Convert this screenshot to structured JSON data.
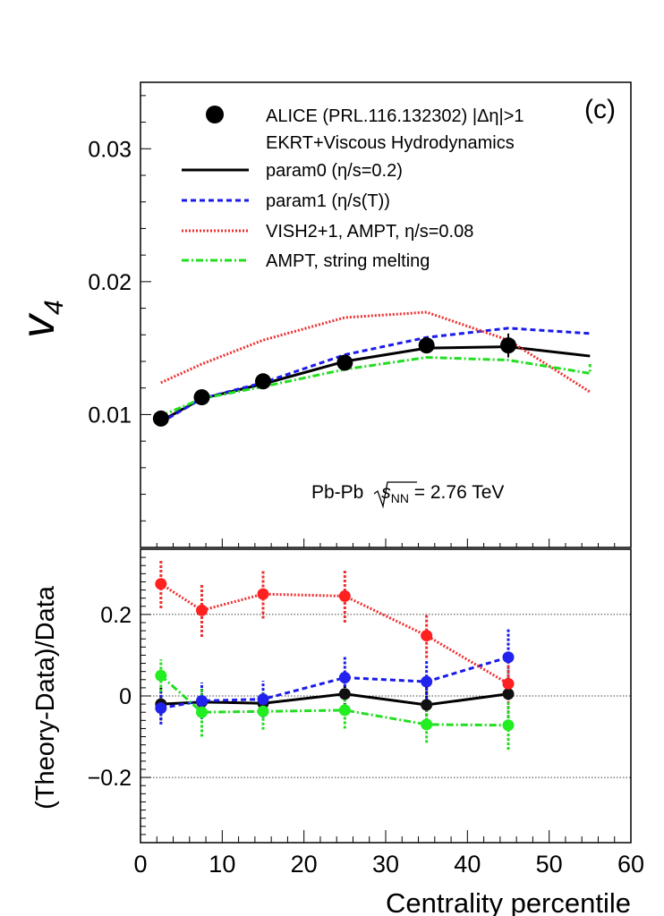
{
  "chart_data": [
    {
      "panel": "top",
      "type": "line",
      "panel_label": "(c)",
      "ylabel": "v",
      "ylabel_sub": "4",
      "xlim": [
        0,
        60
      ],
      "ylim": [
        0.0,
        0.035
      ],
      "yticks": [
        0.01,
        0.02,
        0.03
      ],
      "ytick_labels": [
        "0.01",
        "0.02",
        "0.03"
      ],
      "annotation_prefix": "Pb-Pb ",
      "annotation_sqrt_s": "s",
      "annotation_sub": "NN",
      "annotation_suffix": " = 2.76 TeV",
      "legend": {
        "position": "top",
        "data_label": "ALICE (PRL.116.132302) |Δη|>1",
        "group_header": "EKRT+Viscous Hydrodynamics",
        "param0": "param0 (η/s=0.2)",
        "param1": "param1 (η/s(T))",
        "vish": "VISH2+1, AMPT, η/s=0.08",
        "ampt": "AMPT, string melting"
      },
      "data": {
        "name": "ALICE",
        "color": "#000000",
        "x": [
          2.5,
          7.5,
          15,
          25,
          35,
          45
        ],
        "y": [
          0.0097,
          0.0113,
          0.0125,
          0.0139,
          0.0152,
          0.0152
        ],
        "yerr": [
          0.0004,
          0.0004,
          0.0004,
          0.0005,
          0.0006,
          0.0009
        ]
      },
      "series": [
        {
          "name": "param0",
          "color": "#000000",
          "style": "solid",
          "x": [
            2.5,
            7.5,
            15,
            25,
            35,
            45,
            55
          ],
          "y": [
            0.0095,
            0.0112,
            0.0123,
            0.014,
            0.015,
            0.0151,
            0.0144
          ]
        },
        {
          "name": "param1",
          "color": "#1a1aeb",
          "style": "dashed",
          "x": [
            2.5,
            7.5,
            15,
            25,
            35,
            45,
            55
          ],
          "y": [
            0.0094,
            0.0112,
            0.0124,
            0.0145,
            0.0158,
            0.0165,
            0.0161
          ]
        },
        {
          "name": "VISH2+1",
          "color": "#ee3030",
          "style": "dotted",
          "x": [
            2.5,
            7.5,
            15,
            25,
            35,
            45,
            55
          ],
          "y": [
            0.0124,
            0.0138,
            0.0156,
            0.0173,
            0.0177,
            0.0156,
            0.0117
          ]
        },
        {
          "name": "AMPT",
          "color": "#22dd22",
          "style": "dashdot",
          "x": [
            2.5,
            7.5,
            15,
            25,
            35,
            45,
            55,
            55
          ],
          "y": [
            0.0099,
            0.0112,
            0.0121,
            0.0134,
            0.0143,
            0.0141,
            0.0131,
            0.0138
          ]
        }
      ]
    },
    {
      "panel": "bottom",
      "type": "scatter",
      "ylabel": "(Theory-Data)/Data",
      "xlabel": "Centrality percentile",
      "xlim": [
        0,
        60
      ],
      "ylim": [
        -0.36,
        0.36
      ],
      "xticks": [
        0,
        10,
        20,
        30,
        40,
        50,
        60
      ],
      "xtick_labels": [
        "0",
        "10",
        "20",
        "30",
        "40",
        "50",
        "60"
      ],
      "yticks": [
        -0.2,
        0,
        0.2
      ],
      "ytick_labels": [
        "−0.2",
        "0",
        "0.2"
      ],
      "reference_lines": [
        -0.2,
        0,
        0.2
      ],
      "series": [
        {
          "name": "param0",
          "color": "#000000",
          "marker": "#111111",
          "style": "solid",
          "x": [
            2.5,
            7.5,
            15,
            25,
            35,
            45
          ],
          "y": [
            -0.02,
            -0.015,
            -0.018,
            0.005,
            -0.022,
            0.005
          ],
          "yerr": [
            0.04,
            0.04,
            0.035,
            0.04,
            0.05,
            0.07
          ]
        },
        {
          "name": "param1",
          "color": "#1a1aeb",
          "marker": "#2222ee",
          "style": "dashed",
          "x": [
            2.5,
            7.5,
            15,
            25,
            35,
            45
          ],
          "y": [
            -0.03,
            -0.012,
            -0.008,
            0.045,
            0.035,
            0.095
          ],
          "yerr": [
            0.04,
            0.045,
            0.045,
            0.055,
            0.055,
            0.07
          ]
        },
        {
          "name": "VISH2+1",
          "color": "#ee3030",
          "marker": "#ff2020",
          "style": "dotted",
          "x": [
            2.5,
            7.5,
            15,
            25,
            35,
            45
          ],
          "y": [
            0.275,
            0.21,
            0.25,
            0.245,
            0.148,
            0.03
          ],
          "yerr": [
            0.06,
            0.065,
            0.06,
            0.065,
            0.055,
            0.05
          ]
        },
        {
          "name": "AMPT",
          "color": "#22dd22",
          "marker": "#22ee22",
          "style": "dashdot",
          "x": [
            2.5,
            7.5,
            15,
            25,
            35,
            45
          ],
          "y": [
            0.05,
            -0.04,
            -0.038,
            -0.035,
            -0.07,
            -0.072
          ],
          "yerr": [
            0.04,
            0.06,
            0.045,
            0.045,
            0.045,
            0.06
          ]
        }
      ]
    }
  ]
}
